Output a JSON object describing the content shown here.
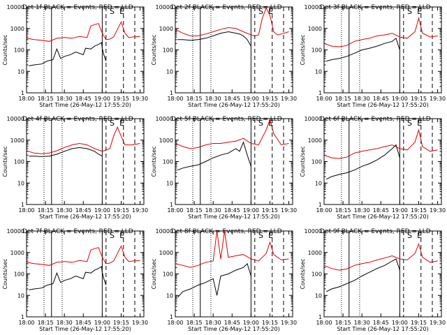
{
  "colors": {
    "events": "#000000",
    "lld": "#e00000",
    "axis": "#000000"
  },
  "chart_data": [
    {
      "type": "line",
      "title": "Det 1f BLACK = Events, RED = LLD",
      "xlabel": "Start Time (26-May-12 17:55:20)",
      "ylabel": "Counts/sec",
      "yscale": "log",
      "ylim": [
        1,
        10000
      ],
      "x_ticks": [
        "18:00",
        "18:15",
        "18:30",
        "18:45",
        "19:00",
        "19:15",
        "19:30"
      ],
      "y_ticks": [
        "1",
        "10",
        "100",
        "1000",
        "10000"
      ],
      "markers": [
        "S",
        "E"
      ],
      "series": [
        {
          "name": "Events",
          "color": "#000000",
          "x": [
            18.03,
            18.1,
            18.2,
            18.27,
            18.35,
            18.4,
            18.45,
            18.5,
            18.58,
            18.65,
            18.75,
            18.78,
            18.85,
            18.9,
            18.95,
            18.99,
            19.0,
            19.02,
            19.05
          ],
          "y": [
            18,
            20,
            22,
            30,
            35,
            110,
            40,
            50,
            60,
            80,
            60,
            120,
            110,
            150,
            180,
            220,
            120,
            60,
            30
          ]
        },
        {
          "name": "LLD",
          "color": "#e00000",
          "x": [
            18.0,
            18.1,
            18.2,
            18.3,
            18.4,
            18.5,
            18.6,
            18.7,
            18.8,
            18.85,
            18.9,
            18.95,
            19.0,
            19.05,
            19.1,
            19.15,
            19.2,
            19.25,
            19.3,
            19.35,
            19.4,
            19.5
          ],
          "y": [
            350,
            300,
            280,
            250,
            350,
            380,
            350,
            420,
            380,
            1300,
            1500,
            1700,
            600,
            300,
            320,
            400,
            900,
            2000,
            600,
            380,
            400,
            420
          ]
        }
      ]
    },
    {
      "type": "line",
      "title": "Det 2f BLACK = Events, RED = LLD",
      "xlabel": "Start Time (26-May-12 17:55:20)",
      "ylabel": "Counts/sec",
      "yscale": "log",
      "ylim": [
        1,
        10000
      ],
      "x_ticks": [
        "18:00",
        "18:15",
        "18:30",
        "18:45",
        "19:00",
        "19:15",
        "19:30"
      ],
      "y_ticks": [
        "1",
        "10",
        "100",
        "1000",
        "10000"
      ],
      "markers": [
        "S",
        "E"
      ],
      "series": [
        {
          "name": "Events",
          "color": "#000000",
          "x": [
            18.03,
            18.1,
            18.2,
            18.3,
            18.4,
            18.5,
            18.6,
            18.7,
            18.75,
            18.8,
            18.85,
            18.9,
            18.95,
            19.0
          ],
          "y": [
            300,
            300,
            280,
            300,
            350,
            450,
            600,
            700,
            650,
            600,
            550,
            450,
            300,
            150
          ]
        },
        {
          "name": "LLD",
          "color": "#e00000",
          "x": [
            18.0,
            18.1,
            18.2,
            18.3,
            18.4,
            18.5,
            18.6,
            18.7,
            18.8,
            18.9,
            19.0,
            19.05,
            19.1,
            19.15,
            19.2,
            19.25,
            19.3,
            19.35,
            19.4,
            19.5
          ],
          "y": [
            900,
            600,
            450,
            450,
            550,
            700,
            900,
            1100,
            1000,
            700,
            500,
            450,
            500,
            3000,
            9000,
            4000,
            700,
            500,
            550,
            700
          ]
        }
      ]
    },
    {
      "type": "line",
      "title": "Det 3f BLACK = Events, RED = LLD",
      "xlabel": "Start Time (26-May-12 17:55:20)",
      "ylabel": "Counts/sec",
      "yscale": "log",
      "ylim": [
        1,
        10000
      ],
      "x_ticks": [
        "18:00",
        "18:15",
        "18:30",
        "18:45",
        "19:00",
        "19:15",
        "19:30"
      ],
      "y_ticks": [
        "1",
        "10",
        "100",
        "1000",
        "10000"
      ],
      "markers": [
        "S",
        "E"
      ],
      "series": [
        {
          "name": "Events",
          "color": "#000000",
          "x": [
            18.03,
            18.1,
            18.2,
            18.3,
            18.4,
            18.5,
            18.6,
            18.7,
            18.8,
            18.9,
            18.95,
            19.0
          ],
          "y": [
            30,
            35,
            40,
            50,
            70,
            100,
            120,
            150,
            200,
            250,
            350,
            100
          ]
        },
        {
          "name": "LLD",
          "color": "#e00000",
          "x": [
            18.0,
            18.1,
            18.2,
            18.3,
            18.4,
            18.5,
            18.6,
            18.7,
            18.8,
            18.9,
            19.0,
            19.1,
            19.2,
            19.25,
            19.3,
            19.4,
            19.5
          ],
          "y": [
            200,
            150,
            140,
            160,
            250,
            300,
            350,
            450,
            500,
            600,
            400,
            350,
            700,
            3000,
            600,
            400,
            450
          ]
        }
      ]
    },
    {
      "type": "line",
      "title": "Det 4f BLACK = Events, RED = LLD",
      "xlabel": "Start Time (26-May-12 17:55:20)",
      "ylabel": "Counts/sec",
      "yscale": "log",
      "ylim": [
        1,
        10000
      ],
      "x_ticks": [
        "18:00",
        "18:15",
        "18:30",
        "18:45",
        "19:00",
        "19:15",
        "19:30"
      ],
      "y_ticks": [
        "1",
        "10",
        "100",
        "1000",
        "10000"
      ],
      "markers": [
        "S",
        "E"
      ],
      "series": [
        {
          "name": "Events",
          "color": "#000000",
          "x": [
            18.03,
            18.1,
            18.2,
            18.3,
            18.4,
            18.5,
            18.6,
            18.7,
            18.8,
            18.9,
            18.95,
            19.0
          ],
          "y": [
            180,
            180,
            170,
            180,
            220,
            300,
            400,
            450,
            400,
            300,
            220,
            180
          ]
        },
        {
          "name": "LLD",
          "color": "#e00000",
          "x": [
            18.0,
            18.1,
            18.2,
            18.3,
            18.4,
            18.5,
            18.6,
            18.7,
            18.8,
            18.9,
            19.0,
            19.1,
            19.15,
            19.2,
            19.25,
            19.3,
            19.4,
            19.5
          ],
          "y": [
            320,
            250,
            230,
            250,
            320,
            450,
            600,
            700,
            600,
            400,
            300,
            400,
            1500,
            4000,
            1500,
            600,
            600,
            700
          ]
        }
      ]
    },
    {
      "type": "line",
      "title": "Det 5f BLACK = Events, RED = LLD",
      "xlabel": "Start Time (26-May-12 17:55:20)",
      "ylabel": "Counts/sec",
      "yscale": "log",
      "ylim": [
        1,
        10000
      ],
      "x_ticks": [
        "18:00",
        "18:15",
        "18:30",
        "18:45",
        "19:00",
        "19:15",
        "19:30"
      ],
      "y_ticks": [
        "1",
        "10",
        "100",
        "1000",
        "10000"
      ],
      "markers": [
        "S",
        "E"
      ],
      "series": [
        {
          "name": "Events",
          "color": "#000000",
          "x": [
            18.03,
            18.1,
            18.2,
            18.3,
            18.4,
            18.5,
            18.6,
            18.7,
            18.8,
            18.85,
            18.9,
            18.95,
            19.0
          ],
          "y": [
            40,
            50,
            60,
            70,
            100,
            150,
            200,
            250,
            400,
            300,
            800,
            200,
            60
          ]
        },
        {
          "name": "LLD",
          "color": "#e00000",
          "x": [
            18.0,
            18.1,
            18.2,
            18.3,
            18.4,
            18.5,
            18.6,
            18.7,
            18.8,
            18.9,
            19.0,
            19.1,
            19.2,
            19.25,
            19.3,
            19.4,
            19.5
          ],
          "y": [
            700,
            500,
            400,
            450,
            600,
            700,
            700,
            800,
            900,
            1200,
            700,
            600,
            3000,
            9000,
            2000,
            600,
            700
          ]
        }
      ]
    },
    {
      "type": "line",
      "title": "Det 6f BLACK = Events, RED = LLD",
      "xlabel": "Start Time (26-May-12 17:55:20)",
      "ylabel": "Counts/sec",
      "yscale": "log",
      "ylim": [
        1,
        10000
      ],
      "x_ticks": [
        "18:00",
        "18:15",
        "18:30",
        "18:45",
        "19:00",
        "19:15",
        "19:30"
      ],
      "y_ticks": [
        "1",
        "10",
        "100",
        "1000",
        "10000"
      ],
      "markers": [
        "S",
        "E"
      ],
      "series": [
        {
          "name": "Events",
          "color": "#000000",
          "x": [
            18.03,
            18.1,
            18.2,
            18.3,
            18.4,
            18.5,
            18.6,
            18.7,
            18.8,
            18.9,
            18.95,
            19.0
          ],
          "y": [
            15,
            20,
            25,
            30,
            40,
            60,
            80,
            120,
            200,
            400,
            600,
            150
          ]
        },
        {
          "name": "LLD",
          "color": "#e00000",
          "x": [
            18.0,
            18.1,
            18.2,
            18.3,
            18.4,
            18.5,
            18.6,
            18.7,
            18.8,
            18.9,
            19.0,
            19.1,
            19.2,
            19.25,
            19.3,
            19.4,
            19.5
          ],
          "y": [
            200,
            150,
            140,
            160,
            250,
            300,
            350,
            400,
            500,
            600,
            400,
            350,
            800,
            3000,
            500,
            300,
            350
          ]
        }
      ]
    },
    {
      "type": "line",
      "title": "Det 7f BLACK = Events, RED = LLD",
      "xlabel": "Start Time (26-May-12 17:55:20)",
      "ylabel": "Counts/sec",
      "yscale": "log",
      "ylim": [
        1,
        10000
      ],
      "x_ticks": [
        "18:00",
        "18:15",
        "18:30",
        "18:45",
        "19:00",
        "19:15",
        "19:30"
      ],
      "y_ticks": [
        "1",
        "10",
        "100",
        "1000",
        "10000"
      ],
      "markers": [
        "S",
        "E"
      ],
      "series": [
        {
          "name": "Events",
          "color": "#000000",
          "x": [
            18.03,
            18.1,
            18.2,
            18.27,
            18.35,
            18.4,
            18.45,
            18.5,
            18.58,
            18.65,
            18.75,
            18.78,
            18.85,
            18.9,
            18.95,
            18.99,
            19.0,
            19.02,
            19.05
          ],
          "y": [
            18,
            20,
            22,
            30,
            35,
            110,
            40,
            50,
            60,
            80,
            60,
            120,
            110,
            150,
            180,
            220,
            120,
            60,
            30
          ]
        },
        {
          "name": "LLD",
          "color": "#e00000",
          "x": [
            18.0,
            18.1,
            18.2,
            18.3,
            18.4,
            18.5,
            18.6,
            18.7,
            18.8,
            18.85,
            18.9,
            18.95,
            19.0,
            19.05,
            19.1,
            19.15,
            19.2,
            19.25,
            19.3,
            19.35,
            19.4,
            19.5
          ],
          "y": [
            350,
            300,
            280,
            250,
            350,
            380,
            350,
            420,
            380,
            1300,
            1500,
            1700,
            600,
            300,
            320,
            400,
            900,
            2000,
            600,
            380,
            400,
            420
          ]
        }
      ]
    },
    {
      "type": "line",
      "title": "Det 8f BLACK = Events, RED = LLD",
      "xlabel": "Start Time (26-May-12 17:55:20)",
      "ylabel": "Counts/sec",
      "yscale": "log",
      "ylim": [
        1,
        10000
      ],
      "x_ticks": [
        "18:00",
        "18:15",
        "18:30",
        "18:45",
        "19:00",
        "19:15",
        "19:30"
      ],
      "y_ticks": [
        "1",
        "10",
        "100",
        "1000",
        "10000"
      ],
      "markers": [
        "S",
        "E"
      ],
      "series": [
        {
          "name": "Events",
          "color": "#000000",
          "x": [
            18.03,
            18.1,
            18.2,
            18.3,
            18.4,
            18.5,
            18.55,
            18.6,
            18.7,
            18.8,
            18.9,
            18.95,
            19.0
          ],
          "y": [
            8,
            15,
            20,
            30,
            40,
            60,
            10,
            80,
            100,
            150,
            200,
            300,
            80
          ]
        },
        {
          "name": "LLD",
          "color": "#e00000",
          "x": [
            18.0,
            18.1,
            18.2,
            18.3,
            18.4,
            18.5,
            18.55,
            18.6,
            18.65,
            18.7,
            18.8,
            18.9,
            19.0,
            19.1,
            19.2,
            19.25,
            19.3,
            19.4,
            19.5
          ],
          "y": [
            300,
            250,
            200,
            250,
            350,
            400,
            10000,
            500,
            10000,
            600,
            700,
            800,
            500,
            400,
            900,
            3000,
            800,
            450,
            500
          ]
        }
      ]
    },
    {
      "type": "line",
      "title": "Det 9f BLACK = Events, RED = LLD",
      "xlabel": "Start Time (26-May-12 17:55:20)",
      "ylabel": "Counts/sec",
      "yscale": "log",
      "ylim": [
        1,
        10000
      ],
      "x_ticks": [
        "18:00",
        "18:15",
        "18:30",
        "18:45",
        "19:00",
        "19:15",
        "19:30"
      ],
      "y_ticks": [
        "1",
        "10",
        "100",
        "1000",
        "10000"
      ],
      "markers": [
        "S",
        "E"
      ],
      "series": [
        {
          "name": "Events",
          "color": "#000000",
          "x": [
            18.03,
            18.1,
            18.2,
            18.3,
            18.4,
            18.5,
            18.6,
            18.7,
            18.8,
            18.9,
            18.95,
            19.0
          ],
          "y": [
            15,
            20,
            25,
            35,
            50,
            80,
            120,
            180,
            250,
            400,
            500,
            150
          ]
        },
        {
          "name": "LLD",
          "color": "#e00000",
          "x": [
            18.0,
            18.1,
            18.2,
            18.3,
            18.4,
            18.5,
            18.6,
            18.7,
            18.8,
            18.9,
            19.0,
            19.1,
            19.2,
            19.25,
            19.3,
            19.4,
            19.5
          ],
          "y": [
            250,
            180,
            150,
            170,
            250,
            300,
            350,
            450,
            550,
            700,
            500,
            450,
            900,
            2500,
            600,
            350,
            400
          ]
        }
      ]
    }
  ]
}
